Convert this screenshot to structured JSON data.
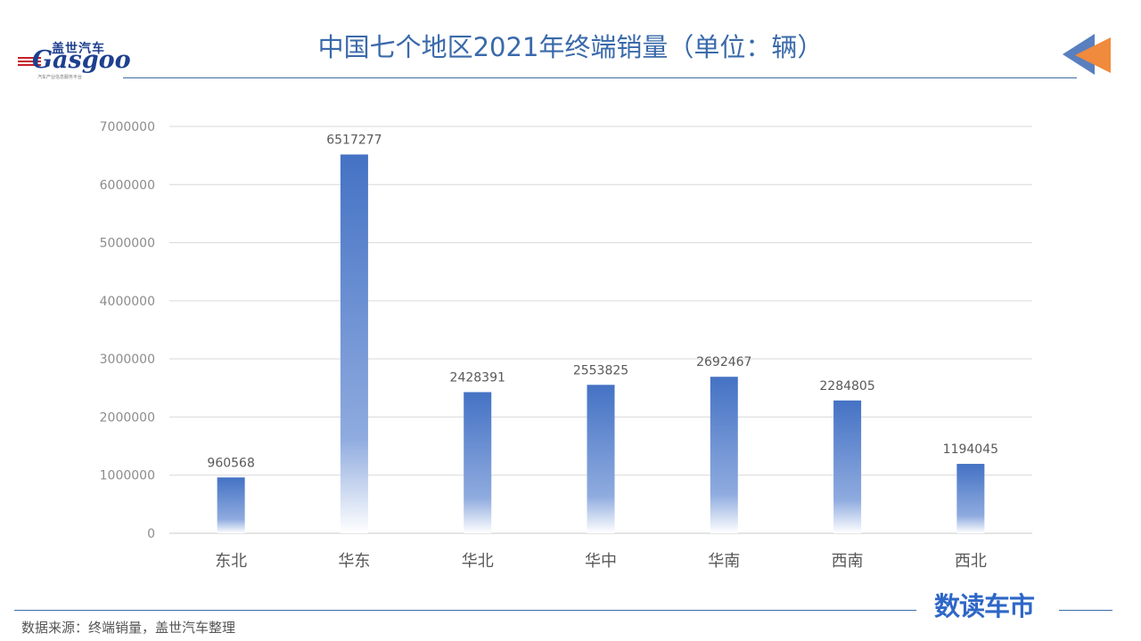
{
  "header": {
    "logo_cn": "盖世汽车",
    "logo_en": "Gasgoo",
    "logo_sub": "汽车产业信息服务平台",
    "title": "中国七个地区2021年终端销量（单位：辆）"
  },
  "footer": {
    "source": "数据来源：终端销量，盖世汽车整理",
    "brand": "数读车市"
  },
  "colors": {
    "accent": "#3b6da7",
    "bar": "#4472c4",
    "corner_orange": "#f08a3c",
    "corner_blue": "#5a7fbf"
  },
  "chart_data": {
    "type": "bar",
    "categories": [
      "东北",
      "华东",
      "华北",
      "华中",
      "华南",
      "西南",
      "西北"
    ],
    "values": [
      960568,
      6517277,
      2428391,
      2553825,
      2692467,
      2284805,
      1194045
    ],
    "ylim": [
      0,
      7000000
    ],
    "yticks": [
      "0",
      "1000000",
      "2000000",
      "3000000",
      "4000000",
      "5000000",
      "6000000",
      "7000000"
    ],
    "grid": true,
    "legend": "none",
    "title": "中国七个地区2021年终端销量（单位：辆）",
    "xlabel": "",
    "ylabel": ""
  }
}
